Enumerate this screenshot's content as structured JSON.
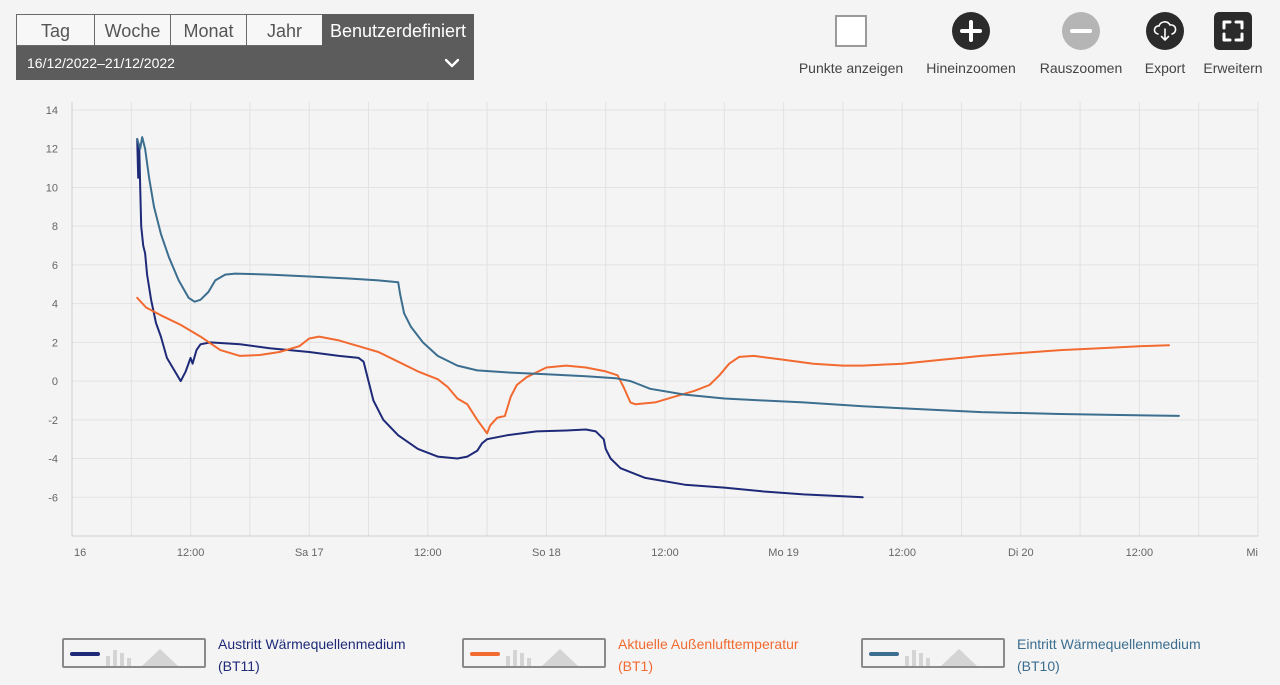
{
  "period": {
    "tabs": [
      {
        "label": "Tag",
        "active": false
      },
      {
        "label": "Woche",
        "active": false
      },
      {
        "label": "Monat",
        "active": false
      },
      {
        "label": "Jahr",
        "active": false
      },
      {
        "label": "Benutzerdefiniert",
        "active": true
      }
    ],
    "range": "16/12/2022–21/12/2022"
  },
  "toolbar": {
    "show_points": "Punkte anzeigen",
    "zoom_in": "Hineinzoomen",
    "zoom_out": "Rauszoomen",
    "export": "Export",
    "expand": "Erweitern"
  },
  "legend": [
    {
      "line1": "Austritt Wärmequellenmedium",
      "line2": "(BT11)",
      "color": "#1e2a78"
    },
    {
      "line1": "Aktuelle Außenlufttemperatur",
      "line2": "(BT1)",
      "color": "#f26a30"
    },
    {
      "line1": "Eintritt Wärmequellenmedium",
      "line2": "(BT10)",
      "color": "#3c6e8f"
    }
  ],
  "chart_data": {
    "type": "line",
    "title": "",
    "xlabel": "",
    "ylabel": "",
    "ylim": [
      -8,
      14
    ],
    "yticks": [
      14,
      12,
      10,
      8,
      6,
      4,
      2,
      0,
      -2,
      -4,
      -6
    ],
    "xlim": [
      0,
      120
    ],
    "xticks": [
      {
        "x": 0,
        "label": "16"
      },
      {
        "x": 12,
        "label": "12:00"
      },
      {
        "x": 24,
        "label": "Sa 17"
      },
      {
        "x": 36,
        "label": "12:00"
      },
      {
        "x": 48,
        "label": "So 18"
      },
      {
        "x": 60,
        "label": "12:00"
      },
      {
        "x": 72,
        "label": "Mo 19"
      },
      {
        "x": 84,
        "label": "12:00"
      },
      {
        "x": 96,
        "label": "Di 20"
      },
      {
        "x": 108,
        "label": "12:00"
      },
      {
        "x": 120,
        "label": "Mi"
      }
    ],
    "grid": true,
    "series": [
      {
        "name": "Austritt Wärmequellenmedium (BT11)",
        "color": "#1e2a78",
        "points": [
          [
            6.6,
            12.5
          ],
          [
            6.7,
            10.5
          ],
          [
            6.8,
            12.2
          ],
          [
            6.9,
            10
          ],
          [
            7,
            8
          ],
          [
            7.2,
            7
          ],
          [
            7.4,
            6.6
          ],
          [
            7.6,
            5.5
          ],
          [
            8,
            4.2
          ],
          [
            8.5,
            3
          ],
          [
            9,
            2.3
          ],
          [
            9.6,
            1.2
          ],
          [
            10.3,
            0.6
          ],
          [
            11,
            0
          ],
          [
            11.5,
            0.5
          ],
          [
            12,
            1.2
          ],
          [
            12.2,
            0.9
          ],
          [
            12.6,
            1.6
          ],
          [
            13,
            1.9
          ],
          [
            14,
            2
          ],
          [
            17,
            1.9
          ],
          [
            20,
            1.7
          ],
          [
            24,
            1.5
          ],
          [
            27,
            1.3
          ],
          [
            29,
            1.2
          ],
          [
            29.5,
            1
          ],
          [
            30,
            0
          ],
          [
            30.5,
            -1
          ],
          [
            31.5,
            -2
          ],
          [
            33,
            -2.8
          ],
          [
            35,
            -3.5
          ],
          [
            37,
            -3.9
          ],
          [
            39,
            -4
          ],
          [
            40,
            -3.9
          ],
          [
            41,
            -3.6
          ],
          [
            41.5,
            -3.2
          ],
          [
            42,
            -3
          ],
          [
            44,
            -2.8
          ],
          [
            47,
            -2.6
          ],
          [
            50,
            -2.55
          ],
          [
            52,
            -2.5
          ],
          [
            53,
            -2.6
          ],
          [
            53.8,
            -3
          ],
          [
            54,
            -3.5
          ],
          [
            54.5,
            -4
          ],
          [
            55.5,
            -4.5
          ],
          [
            58,
            -5
          ],
          [
            62,
            -5.35
          ],
          [
            66,
            -5.5
          ],
          [
            70,
            -5.7
          ],
          [
            74,
            -5.85
          ],
          [
            78,
            -5.95
          ],
          [
            80,
            -6
          ]
        ]
      },
      {
        "name": "Aktuelle Außenlufttemperatur (BT1)",
        "color": "#f26a30",
        "points": [
          [
            6.6,
            4.3
          ],
          [
            7.5,
            3.8
          ],
          [
            9,
            3.4
          ],
          [
            11,
            2.9
          ],
          [
            13,
            2.3
          ],
          [
            15,
            1.6
          ],
          [
            17,
            1.3
          ],
          [
            19,
            1.35
          ],
          [
            21,
            1.5
          ],
          [
            23,
            1.8
          ],
          [
            24,
            2.2
          ],
          [
            25,
            2.3
          ],
          [
            27,
            2.1
          ],
          [
            29,
            1.8
          ],
          [
            31,
            1.5
          ],
          [
            33,
            1
          ],
          [
            35,
            0.5
          ],
          [
            37,
            0.1
          ],
          [
            38,
            -0.3
          ],
          [
            39,
            -0.9
          ],
          [
            40,
            -1.2
          ],
          [
            41,
            -2
          ],
          [
            42,
            -2.7
          ],
          [
            42.3,
            -2.3
          ],
          [
            43,
            -1.9
          ],
          [
            43.8,
            -1.8
          ],
          [
            44.4,
            -0.8
          ],
          [
            45,
            -0.2
          ],
          [
            46,
            0.2
          ],
          [
            48,
            0.7
          ],
          [
            50,
            0.8
          ],
          [
            52,
            0.7
          ],
          [
            54,
            0.5
          ],
          [
            55.2,
            0.3
          ],
          [
            55.8,
            -0.3
          ],
          [
            56.5,
            -1.1
          ],
          [
            57,
            -1.2
          ],
          [
            59,
            -1.1
          ],
          [
            61,
            -0.8
          ],
          [
            63,
            -0.5
          ],
          [
            64.5,
            -0.2
          ],
          [
            65.5,
            0.3
          ],
          [
            66.5,
            0.9
          ],
          [
            67.5,
            1.25
          ],
          [
            69,
            1.3
          ],
          [
            72,
            1.1
          ],
          [
            75,
            0.9
          ],
          [
            78,
            0.8
          ],
          [
            80,
            0.8
          ],
          [
            84,
            0.9
          ],
          [
            88,
            1.1
          ],
          [
            92,
            1.3
          ],
          [
            96,
            1.45
          ],
          [
            100,
            1.6
          ],
          [
            104,
            1.7
          ],
          [
            108,
            1.8
          ],
          [
            111,
            1.85
          ]
        ]
      },
      {
        "name": "Eintritt Wärmequellenmedium (BT10)",
        "color": "#3c6e8f",
        "points": [
          [
            6.6,
            12.5
          ],
          [
            6.9,
            12
          ],
          [
            7.1,
            12.6
          ],
          [
            7.4,
            12
          ],
          [
            7.8,
            10.5
          ],
          [
            8.3,
            9
          ],
          [
            9,
            7.6
          ],
          [
            9.8,
            6.4
          ],
          [
            10.8,
            5.2
          ],
          [
            11.8,
            4.3
          ],
          [
            12.4,
            4.1
          ],
          [
            13,
            4.2
          ],
          [
            13.8,
            4.6
          ],
          [
            14.5,
            5.2
          ],
          [
            15.5,
            5.5
          ],
          [
            16.5,
            5.55
          ],
          [
            20,
            5.5
          ],
          [
            24,
            5.4
          ],
          [
            28,
            5.3
          ],
          [
            31,
            5.2
          ],
          [
            33,
            5.1
          ],
          [
            33.2,
            4.5
          ],
          [
            33.6,
            3.5
          ],
          [
            34.3,
            2.8
          ],
          [
            35.5,
            2
          ],
          [
            37,
            1.3
          ],
          [
            39,
            0.8
          ],
          [
            41,
            0.55
          ],
          [
            44,
            0.45
          ],
          [
            48,
            0.35
          ],
          [
            52,
            0.25
          ],
          [
            55,
            0.15
          ],
          [
            56.5,
            0
          ],
          [
            57,
            -0.1
          ],
          [
            58.5,
            -0.4
          ],
          [
            62,
            -0.7
          ],
          [
            66,
            -0.9
          ],
          [
            70,
            -1
          ],
          [
            74,
            -1.1
          ],
          [
            80,
            -1.3
          ],
          [
            86,
            -1.45
          ],
          [
            92,
            -1.6
          ],
          [
            100,
            -1.7
          ],
          [
            106,
            -1.75
          ],
          [
            112,
            -1.8
          ]
        ]
      }
    ]
  }
}
